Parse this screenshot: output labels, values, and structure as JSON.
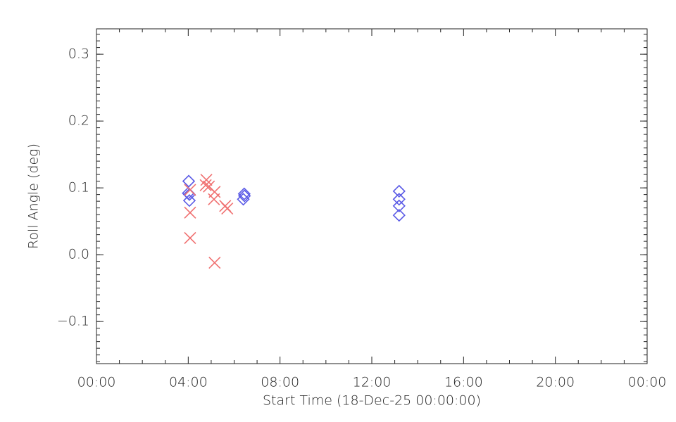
{
  "chart_data": {
    "type": "scatter",
    "xlabel": "Start Time (18-Dec-25 00:00:00)",
    "ylabel": "Roll Angle (deg)",
    "xlim": [
      0,
      24
    ],
    "xticks": [
      {
        "value": 0,
        "label": "00:00"
      },
      {
        "value": 4,
        "label": "04:00"
      },
      {
        "value": 8,
        "label": "08:00"
      },
      {
        "value": 12,
        "label": "12:00"
      },
      {
        "value": 16,
        "label": "16:00"
      },
      {
        "value": 20,
        "label": "20:00"
      },
      {
        "value": 24,
        "label": "00:00"
      }
    ],
    "ylim": [
      -0.163,
      0.338
    ],
    "yticks": [
      {
        "value": -0.1,
        "label": "−0.1"
      },
      {
        "value": 0,
        "label": "0.0"
      },
      0.1,
      0.2,
      0.3
    ],
    "minor_ticks": {
      "x": 4,
      "y": 10
    },
    "series": [
      {
        "color": "#5a5ae6",
        "marker": "diamond",
        "x": [
          4.02,
          4.0,
          4.05,
          4.05,
          6.44,
          6.45,
          6.4,
          13.19,
          13.19,
          13.19,
          13.19
        ],
        "values": [
          0.11,
          0.092,
          0.09,
          0.081,
          0.091,
          0.088,
          0.083,
          0.095,
          0.083,
          0.073,
          0.059
        ]
      },
      {
        "color": "#f07070",
        "marker": "x",
        "x": [
          4.08,
          4.08,
          4.08,
          4.79,
          4.76,
          4.9,
          5.15,
          5.12,
          5.15,
          5.61,
          5.7
        ],
        "values": [
          0.097,
          0.063,
          0.025,
          0.112,
          0.104,
          0.102,
          0.094,
          0.083,
          -0.012,
          0.073,
          0.069
        ]
      }
    ]
  }
}
